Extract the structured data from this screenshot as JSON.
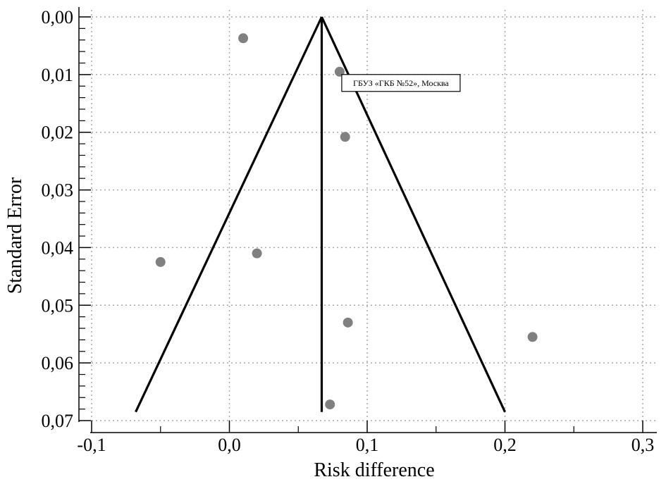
{
  "chart_data": {
    "type": "scatter",
    "subtype": "funnel-plot",
    "title": "",
    "xlabel": "Risk difference",
    "ylabel": "Standard Error",
    "xlim": [
      -0.1,
      0.3
    ],
    "ylim": [
      0.0,
      0.07
    ],
    "y_inverted": true,
    "grid": true,
    "x_ticks": [
      -0.1,
      0.0,
      0.1,
      0.2,
      0.3
    ],
    "x_tick_labels": [
      "-0,1",
      "0,0",
      "0,1",
      "0,2",
      "0,3"
    ],
    "y_ticks": [
      0.0,
      0.01,
      0.02,
      0.03,
      0.04,
      0.05,
      0.06,
      0.07
    ],
    "y_tick_labels": [
      "0,00",
      "0,01",
      "0,02",
      "0,03",
      "0,04",
      "0,05",
      "0,06",
      "0,07"
    ],
    "pooled_estimate": 0.067,
    "funnel": {
      "apex": [
        0.067,
        0.0
      ],
      "left_base": [
        -0.068,
        0.0685
      ],
      "right_base": [
        0.2,
        0.0685
      ]
    },
    "points": [
      {
        "x": 0.01,
        "y": 0.0037
      },
      {
        "x": 0.08,
        "y": 0.0095
      },
      {
        "x": 0.084,
        "y": 0.0208
      },
      {
        "x": 0.02,
        "y": 0.041
      },
      {
        "x": -0.05,
        "y": 0.0425
      },
      {
        "x": 0.086,
        "y": 0.053
      },
      {
        "x": 0.22,
        "y": 0.0555
      },
      {
        "x": 0.073,
        "y": 0.0672
      }
    ],
    "annotation": {
      "text": "ГБУЗ «ГКБ №52», Москва",
      "anchor_x": 0.08,
      "anchor_y": 0.0095
    },
    "colors": {
      "points": "#808080",
      "lines": "#000000",
      "grid": "#a9a9a9"
    }
  }
}
